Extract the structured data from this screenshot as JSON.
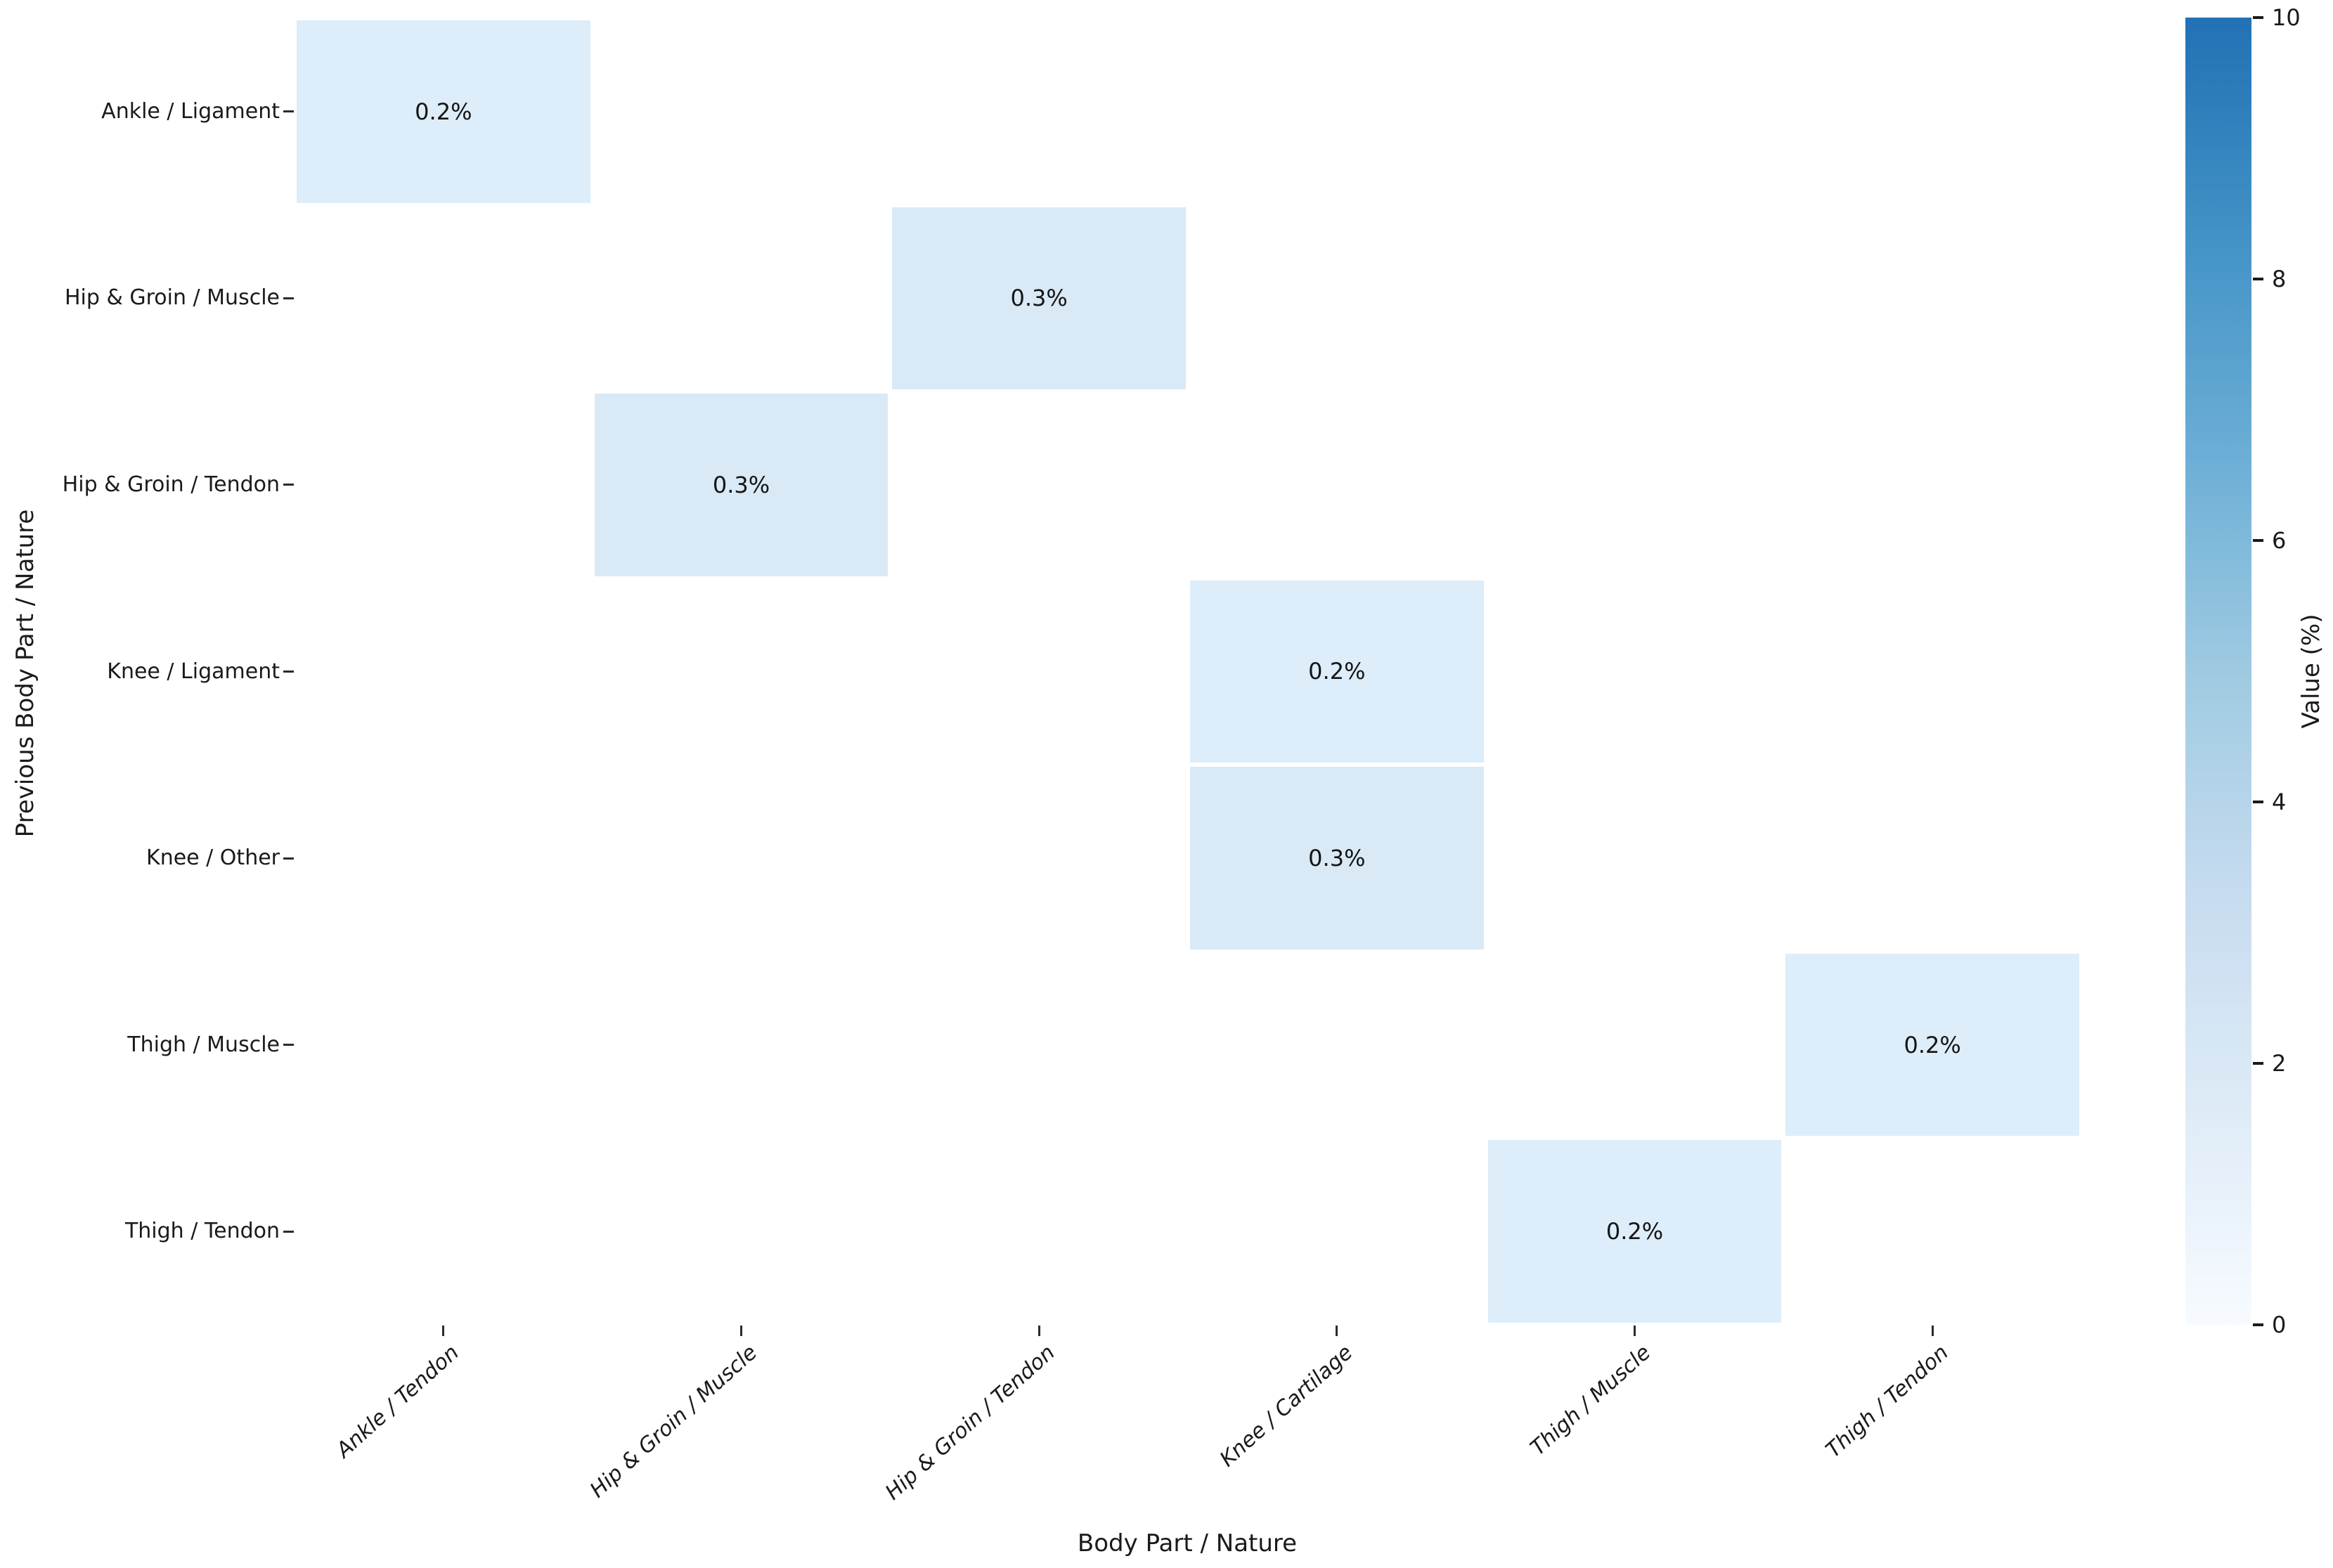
{
  "chart_data": {
    "type": "heatmap",
    "title": "",
    "xlabel": "Body Part / Nature",
    "ylabel": "Previous Body Part / Nature",
    "x_categories": [
      "Ankle / Tendon",
      "Hip & Groin / Muscle",
      "Hip & Groin / Tendon",
      "Knee / Cartilage",
      "Thigh / Muscle",
      "Thigh / Tendon"
    ],
    "y_categories": [
      "Ankle / Ligament",
      "Hip & Groin / Muscle",
      "Hip & Groin / Tendon",
      "Knee / Ligament",
      "Knee / Other",
      "Thigh / Muscle",
      "Thigh / Tendon"
    ],
    "cells": [
      {
        "row": 0,
        "col": 0,
        "value": 0.2,
        "label": "0.2%"
      },
      {
        "row": 1,
        "col": 2,
        "value": 0.3,
        "label": "0.3%"
      },
      {
        "row": 2,
        "col": 1,
        "value": 0.3,
        "label": "0.3%"
      },
      {
        "row": 3,
        "col": 3,
        "value": 0.2,
        "label": "0.2%"
      },
      {
        "row": 4,
        "col": 3,
        "value": 0.3,
        "label": "0.3%"
      },
      {
        "row": 5,
        "col": 5,
        "value": 0.2,
        "label": "0.2%"
      },
      {
        "row": 6,
        "col": 4,
        "value": 0.2,
        "label": "0.2%"
      }
    ],
    "empty_cell_color": "#ffffff",
    "cell_colors": {
      "value_02": "#ddedf9",
      "value_03": "#d9e9f6"
    },
    "colorbar": {
      "label": "Value (%)",
      "min": 0,
      "max": 10,
      "ticks": [
        0,
        2,
        4,
        6,
        8,
        10
      ],
      "gradient_stops_bottom_to_top": [
        "#f7fbff",
        "#deebf7",
        "#c6dbef",
        "#9ecae1",
        "#6baed6",
        "#4292c6",
        "#2171b5"
      ]
    },
    "layout": {
      "grid": "off",
      "legend": "colorbar-right",
      "x_tick_rotation_deg": 42,
      "x_tick_style": "italic"
    }
  }
}
